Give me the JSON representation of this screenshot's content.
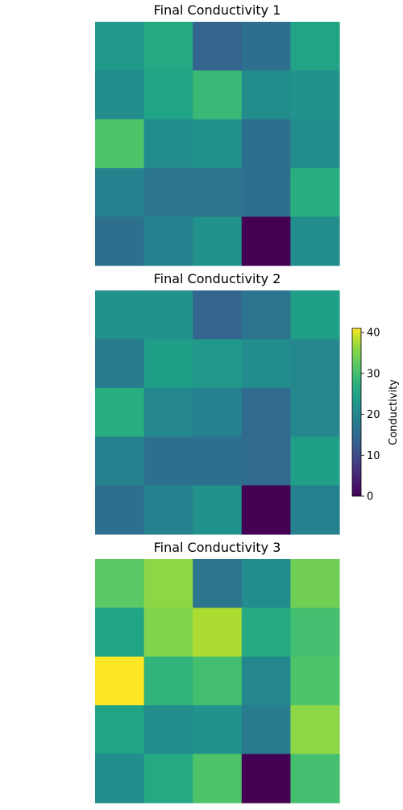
{
  "chart_data": {
    "type": "heatmap",
    "colormap": "viridis",
    "vmin": 0,
    "vmax": 41,
    "panels": [
      {
        "title": "Final Conductivity 1",
        "values": [
          [
            23,
            26,
            14,
            16,
            25
          ],
          [
            21,
            25,
            29,
            21,
            22
          ],
          [
            31,
            21,
            22,
            16,
            21
          ],
          [
            19,
            17,
            17,
            16,
            27
          ],
          [
            16,
            19,
            22,
            0,
            21
          ]
        ]
      },
      {
        "title": "Final Conductivity 2",
        "values": [
          [
            22,
            22,
            14,
            17,
            24
          ],
          [
            18,
            24,
            23,
            21,
            20
          ],
          [
            27,
            20,
            19,
            15,
            20
          ],
          [
            19,
            16,
            16,
            15,
            24
          ],
          [
            16,
            19,
            22,
            0,
            19
          ]
        ]
      },
      {
        "title": "Final Conductivity 3",
        "values": [
          [
            32,
            36,
            17,
            21,
            34
          ],
          [
            25,
            35,
            38,
            26,
            30
          ],
          [
            41,
            28,
            30,
            20,
            31
          ],
          [
            25,
            21,
            22,
            18,
            36
          ],
          [
            21,
            26,
            31,
            0,
            30
          ]
        ]
      }
    ],
    "colorbar": {
      "label": "Conductivity",
      "ticks": [
        0,
        10,
        20,
        30,
        40
      ],
      "range": [
        0,
        41
      ]
    }
  }
}
